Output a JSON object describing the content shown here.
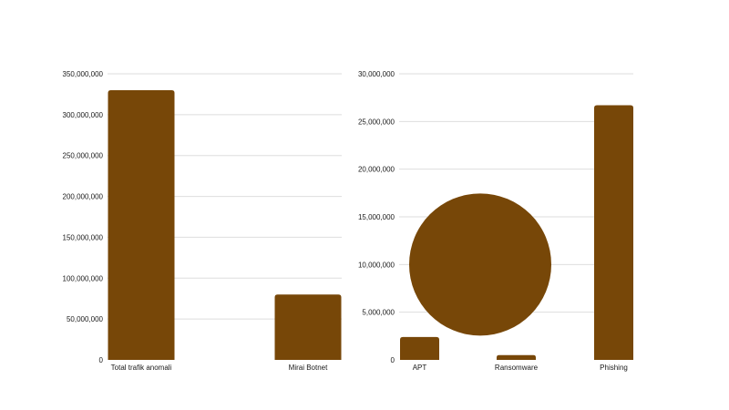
{
  "chart_data": [
    {
      "type": "bar",
      "title": "",
      "xlabel": "",
      "ylabel": "",
      "categories": [
        "Total trafik anomali",
        "Mirai Botnet"
      ],
      "values": [
        330000000,
        80000000
      ],
      "ylim": [
        0,
        350000000
      ],
      "yticks": [
        0,
        50000000,
        100000000,
        150000000,
        200000000,
        250000000,
        300000000,
        350000000
      ],
      "ytick_labels": [
        "0",
        "50,000,000",
        "100,000,000",
        "150,000,000",
        "200,000,000",
        "250,000,000",
        "300,000,000",
        "350,000,000"
      ],
      "grid": true,
      "bar_color": "#774708"
    },
    {
      "type": "bar",
      "title": "",
      "xlabel": "",
      "ylabel": "",
      "categories": [
        "APT",
        "Ransomware",
        "Phishing"
      ],
      "values": [
        2400000,
        500000,
        26700000
      ],
      "ylim": [
        0,
        30000000
      ],
      "yticks": [
        0,
        5000000,
        10000000,
        15000000,
        20000000,
        25000000,
        30000000
      ],
      "ytick_labels": [
        "0",
        "5,000,000",
        "10,000,000",
        "15,000,000",
        "20,000,000",
        "25,000,000",
        "30,000,000"
      ],
      "grid": true,
      "bar_color": "#774708",
      "overlay_circle": {
        "shape": "circle",
        "center_value": 10000000,
        "color": "#774708"
      }
    }
  ]
}
